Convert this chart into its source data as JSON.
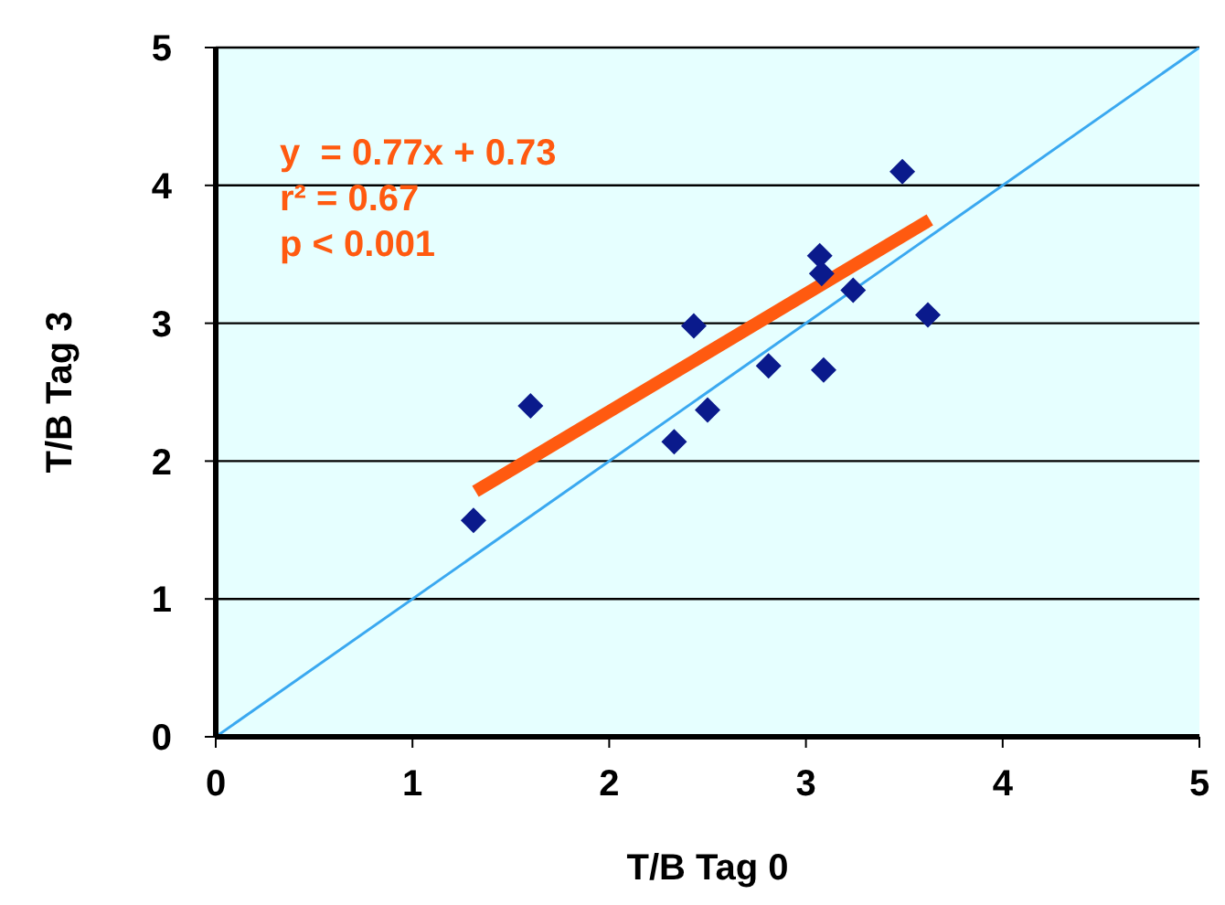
{
  "chart_data": {
    "type": "scatter",
    "xlabel": "T/B Tag 0",
    "ylabel": "T/B Tag  3",
    "xlim": [
      0,
      5
    ],
    "ylim": [
      0,
      5
    ],
    "xticks": [
      0,
      1,
      2,
      3,
      4,
      5
    ],
    "yticks": [
      0,
      1,
      2,
      3,
      4,
      5
    ],
    "grid": "y",
    "marker": "diamond",
    "annotations": [
      "y  = 0.77x + 0.73",
      "r² = 0.67",
      "p < 0.001"
    ],
    "series": [
      {
        "color": "#0a1a8c",
        "x": [
          1.31,
          1.6,
          2.33,
          2.43,
          2.5,
          2.81,
          3.07,
          3.08,
          3.09,
          3.24,
          3.49,
          3.62
        ],
        "values": [
          1.57,
          2.4,
          2.14,
          2.98,
          2.37,
          2.69,
          3.49,
          3.36,
          2.66,
          3.24,
          4.1,
          3.06
        ]
      },
      {
        "type": "line",
        "color": "#ff5a10",
        "x": [
          1.32,
          3.63
        ],
        "values": [
          1.78,
          3.75
        ],
        "marker": "none"
      },
      {
        "type": "line",
        "color": "#3aa8f0",
        "x": [
          0,
          5
        ],
        "values": [
          0,
          5
        ],
        "marker": "none"
      }
    ]
  }
}
